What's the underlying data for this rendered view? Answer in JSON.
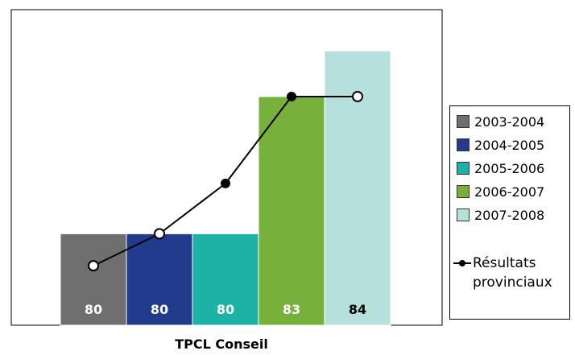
{
  "chart_data": {
    "type": "bar",
    "categories": [
      "2003-2004",
      "2004-2005",
      "2005-2006",
      "2006-2007",
      "2007-2008"
    ],
    "values": [
      80,
      80,
      80,
      83,
      84
    ],
    "value_labels": [
      "80",
      "80",
      "80",
      "83",
      "84"
    ],
    "colors": [
      "#6e6e6e",
      "#233b8c",
      "#1cb3a6",
      "#77b03a",
      "#b5e0db"
    ],
    "label_colors": [
      "#ffffff",
      "#ffffff",
      "#ffffff",
      "#ffffff",
      "#000000"
    ],
    "line_series": {
      "name": "Résultats provinciaux",
      "values": [
        79.3,
        80,
        81.1,
        83,
        83
      ]
    },
    "xlabel": "TPCL Conseil",
    "ylim": [
      78,
      84.9
    ],
    "legend_position": "right",
    "grid": false
  },
  "legend": {
    "items": [
      "2003-2004",
      "2004-2005",
      "2005-2006",
      "2006-2007",
      "2007-2008"
    ],
    "line_label_1": "Résultats",
    "line_label_2": "provinciaux"
  }
}
